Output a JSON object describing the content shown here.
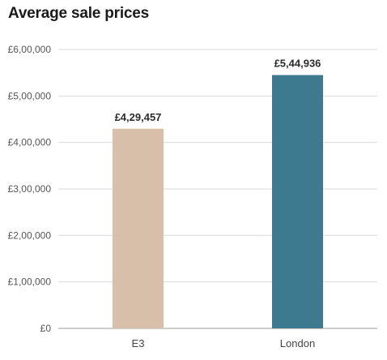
{
  "chart_data": {
    "type": "bar",
    "title": "Average sale prices",
    "xlabel": "",
    "ylabel": "",
    "categories": [
      "E3",
      "London"
    ],
    "values": [
      429457,
      544936
    ],
    "data_labels": [
      "£4,29,457",
      "£5,44,936"
    ],
    "colors": [
      "#d8bfaa",
      "#3d7a8f"
    ],
    "ylim": [
      0,
      600000
    ],
    "y_ticks": [
      0,
      100000,
      200000,
      300000,
      400000,
      500000,
      600000
    ],
    "y_tick_labels": [
      "£0",
      "£1,00,000",
      "£2,00,000",
      "£3,00,000",
      "£4,00,000",
      "£5,00,000",
      "£6,00,000"
    ],
    "grid": true,
    "legend": "none"
  }
}
